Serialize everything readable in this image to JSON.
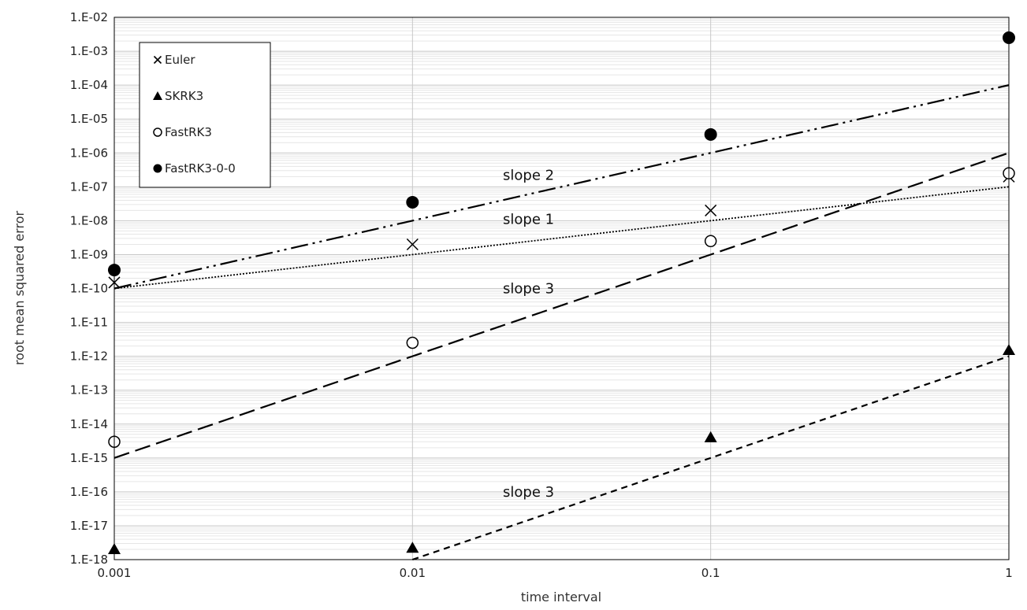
{
  "chart_data": {
    "type": "scatter",
    "xlabel": "time interval",
    "ylabel": "root mean squared error",
    "x_scale": "log",
    "y_scale": "log",
    "xlim": [
      0.001,
      1
    ],
    "ylim": [
      1e-18,
      0.01
    ],
    "x_ticks": [
      0.001,
      0.01,
      0.1,
      1
    ],
    "x_tick_labels": [
      "0.001",
      "0.01",
      "0.1",
      "1"
    ],
    "y_ticks": [
      0.01,
      0.001,
      0.0001,
      1e-05,
      1e-06,
      1e-07,
      1e-08,
      1e-09,
      1e-10,
      1e-11,
      1e-12,
      1e-13,
      1e-14,
      1e-15,
      1e-16,
      1e-17,
      1e-18
    ],
    "y_tick_labels": [
      "1.E-02",
      "1.E-03",
      "1.E-04",
      "1.E-05",
      "1.E-06",
      "1.E-07",
      "1.E-08",
      "1.E-09",
      "1.E-10",
      "1.E-11",
      "1.E-12",
      "1.E-13",
      "1.E-14",
      "1.E-15",
      "1.E-16",
      "1.E-17",
      "1.E-18"
    ],
    "grid": true,
    "legend": {
      "position": "top-left",
      "entries": [
        "Euler",
        "SKRK3",
        "FastRK3",
        "FastRK3-0-0"
      ]
    },
    "series": [
      {
        "name": "Euler",
        "marker": "x",
        "x": [
          0.001,
          0.01,
          0.1,
          1
        ],
        "y": [
          1.5e-10,
          2e-09,
          2e-08,
          2e-07
        ]
      },
      {
        "name": "SKRK3",
        "marker": "filled-triangle",
        "x": [
          0.001,
          0.01,
          0.1,
          1
        ],
        "y": [
          2e-18,
          2.2e-18,
          4e-15,
          1.5e-12
        ]
      },
      {
        "name": "FastRK3",
        "marker": "open-circle",
        "x": [
          0.001,
          0.01,
          0.1,
          1
        ],
        "y": [
          3e-15,
          2.5e-12,
          2.5e-09,
          2.5e-07
        ]
      },
      {
        "name": "FastRK3-0-0",
        "marker": "filled-circle",
        "x": [
          0.001,
          0.01,
          0.1,
          1
        ],
        "y": [
          3.5e-10,
          3.5e-08,
          3.5e-06,
          0.0025
        ]
      }
    ],
    "reference_lines": [
      {
        "style": "dash-dot-dot",
        "x": [
          0.001,
          1
        ],
        "y": [
          1e-10,
          0.0001
        ]
      },
      {
        "style": "dotted",
        "x": [
          0.001,
          1
        ],
        "y": [
          1e-10,
          1e-07
        ]
      },
      {
        "style": "long-dash",
        "x": [
          0.001,
          1
        ],
        "y": [
          1e-15,
          1e-06
        ]
      },
      {
        "style": "short-dash",
        "x": [
          0.001,
          1
        ],
        "y": [
          1e-21,
          1e-12
        ]
      }
    ],
    "annotations": [
      {
        "text": "slope 2",
        "x": 0.0245,
        "y": 2.2e-07
      },
      {
        "text": "slope 1",
        "x": 0.0245,
        "y": 1.1e-08
      },
      {
        "text": "slope 3",
        "x": 0.0245,
        "y": 1e-10
      },
      {
        "text": "slope 3",
        "x": 0.0245,
        "y": 1e-16
      }
    ]
  }
}
